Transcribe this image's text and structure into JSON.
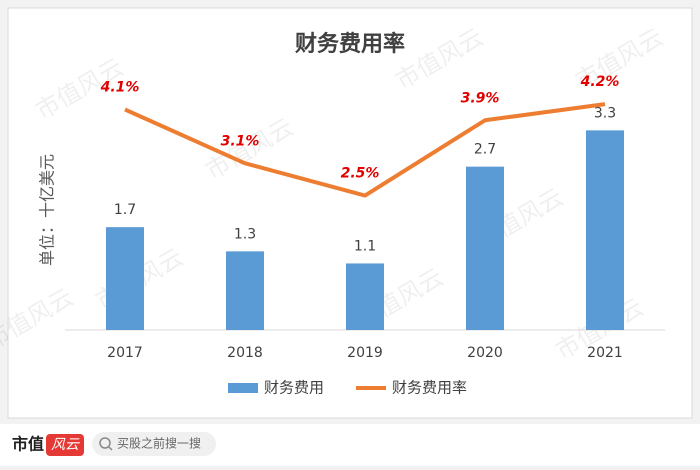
{
  "chart_data": {
    "type": "bar",
    "title": "财务费用率",
    "y_axis_label": "单位：十亿美元",
    "categories": [
      "2017",
      "2018",
      "2019",
      "2020",
      "2021"
    ],
    "series": [
      {
        "name": "财务费用",
        "type": "bar",
        "color": "#5b9bd5",
        "values": [
          1.7,
          1.3,
          1.1,
          2.7,
          3.3
        ]
      },
      {
        "name": "财务费用率",
        "type": "line",
        "axis": "y2",
        "color": "#ed7d31",
        "values": [
          4.1,
          3.1,
          2.5,
          3.9,
          4.2
        ],
        "value_labels": [
          "4.1%",
          "3.1%",
          "2.5%",
          "3.9%",
          "4.2%"
        ]
      }
    ],
    "ylim": [
      0,
      4
    ],
    "y2lim": [
      0,
      4.5
    ],
    "grid": false,
    "legend": "bottom"
  },
  "watermark": "市值风云",
  "footer": {
    "logo_main": "市值",
    "logo_accent": "风云",
    "search": "买股之前搜一搜"
  }
}
